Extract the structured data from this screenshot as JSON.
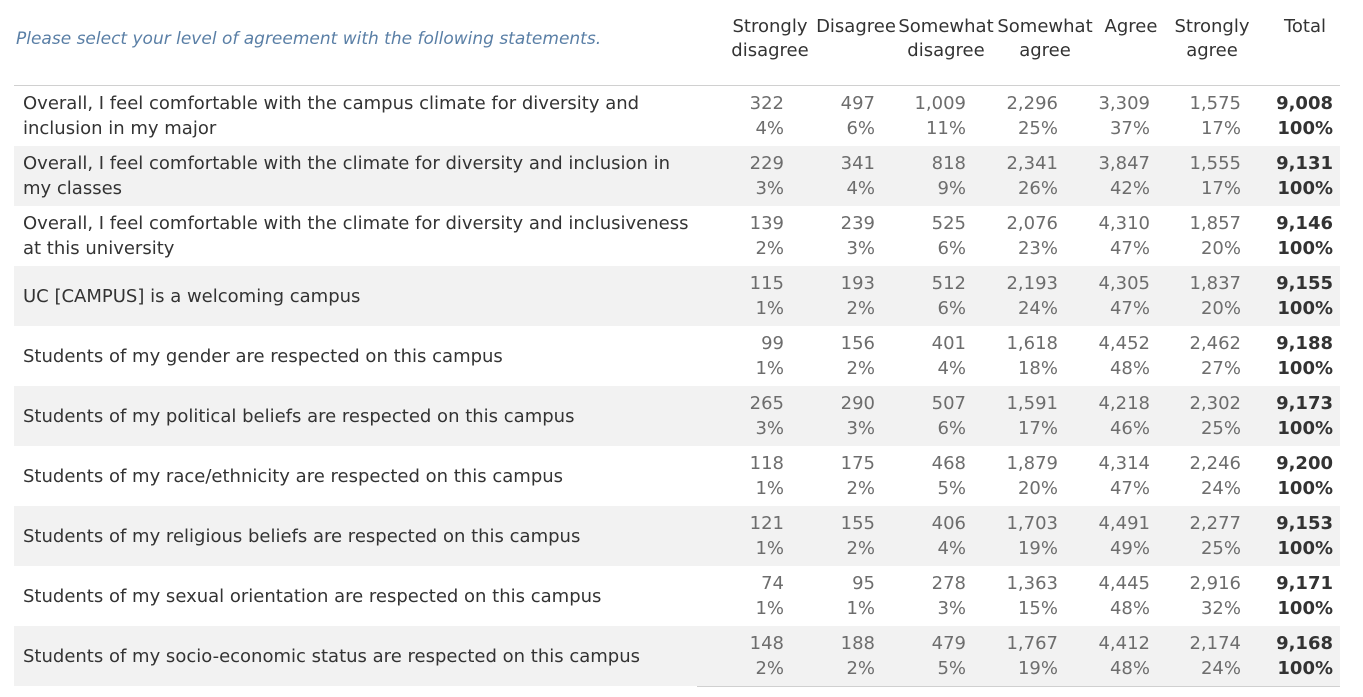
{
  "prompt": "Please select your level of agreement with the following statements.",
  "chart_data": {
    "type": "table",
    "columns": [
      "Strongly disagree",
      "Disagree",
      "Somewhat disagree",
      "Somewhat agree",
      "Agree",
      "Strongly agree",
      "Total"
    ],
    "column_headers": [
      "Strongly\ndisagree",
      "Disagree",
      "Somewhat\ndisagree",
      "Somewhat\nagree",
      "Agree",
      "Strongly\nagree",
      "Total"
    ],
    "rows": [
      {
        "statement": "Overall, I feel comfortable with the campus climate for diversity and inclusion in my major",
        "counts": [
          "322",
          "497",
          "1,009",
          "2,296",
          "3,309",
          "1,575",
          "9,008"
        ],
        "percents": [
          "4%",
          "6%",
          "11%",
          "25%",
          "37%",
          "17%",
          "100%"
        ]
      },
      {
        "statement": "Overall, I feel comfortable with the climate for diversity and inclusion in my classes",
        "counts": [
          "229",
          "341",
          "818",
          "2,341",
          "3,847",
          "1,555",
          "9,131"
        ],
        "percents": [
          "3%",
          "4%",
          "9%",
          "26%",
          "42%",
          "17%",
          "100%"
        ]
      },
      {
        "statement": "Overall, I feel comfortable with the climate for diversity and inclusiveness at this university",
        "counts": [
          "139",
          "239",
          "525",
          "2,076",
          "4,310",
          "1,857",
          "9,146"
        ],
        "percents": [
          "2%",
          "3%",
          "6%",
          "23%",
          "47%",
          "20%",
          "100%"
        ]
      },
      {
        "statement": "UC [CAMPUS] is a welcoming campus",
        "counts": [
          "115",
          "193",
          "512",
          "2,193",
          "4,305",
          "1,837",
          "9,155"
        ],
        "percents": [
          "1%",
          "2%",
          "6%",
          "24%",
          "47%",
          "20%",
          "100%"
        ]
      },
      {
        "statement": "Students of my gender are respected on this campus",
        "counts": [
          "99",
          "156",
          "401",
          "1,618",
          "4,452",
          "2,462",
          "9,188"
        ],
        "percents": [
          "1%",
          "2%",
          "4%",
          "18%",
          "48%",
          "27%",
          "100%"
        ]
      },
      {
        "statement": "Students of my political beliefs are respected on this campus",
        "counts": [
          "265",
          "290",
          "507",
          "1,591",
          "4,218",
          "2,302",
          "9,173"
        ],
        "percents": [
          "3%",
          "3%",
          "6%",
          "17%",
          "46%",
          "25%",
          "100%"
        ]
      },
      {
        "statement": "Students of my race/ethnicity are respected on this campus",
        "counts": [
          "118",
          "175",
          "468",
          "1,879",
          "4,314",
          "2,246",
          "9,200"
        ],
        "percents": [
          "1%",
          "2%",
          "5%",
          "20%",
          "47%",
          "24%",
          "100%"
        ]
      },
      {
        "statement": "Students of my religious beliefs are respected on this campus",
        "counts": [
          "121",
          "155",
          "406",
          "1,703",
          "4,491",
          "2,277",
          "9,153"
        ],
        "percents": [
          "1%",
          "2%",
          "4%",
          "19%",
          "49%",
          "25%",
          "100%"
        ]
      },
      {
        "statement": "Students of my sexual orientation are respected on this campus",
        "counts": [
          "74",
          "95",
          "278",
          "1,363",
          "4,445",
          "2,916",
          "9,171"
        ],
        "percents": [
          "1%",
          "1%",
          "3%",
          "15%",
          "48%",
          "32%",
          "100%"
        ]
      },
      {
        "statement": "Students of my socio-economic status are respected on this campus",
        "counts": [
          "148",
          "188",
          "479",
          "1,767",
          "4,412",
          "2,174",
          "9,168"
        ],
        "percents": [
          "2%",
          "2%",
          "5%",
          "19%",
          "48%",
          "24%",
          "100%"
        ]
      }
    ],
    "row_shading": "alternating",
    "colors": {
      "prompt_text": "#5a7fa6",
      "shaded_row": "#f2f2f2",
      "value_text": "#6d6d6d",
      "total_text": "#333333"
    }
  }
}
